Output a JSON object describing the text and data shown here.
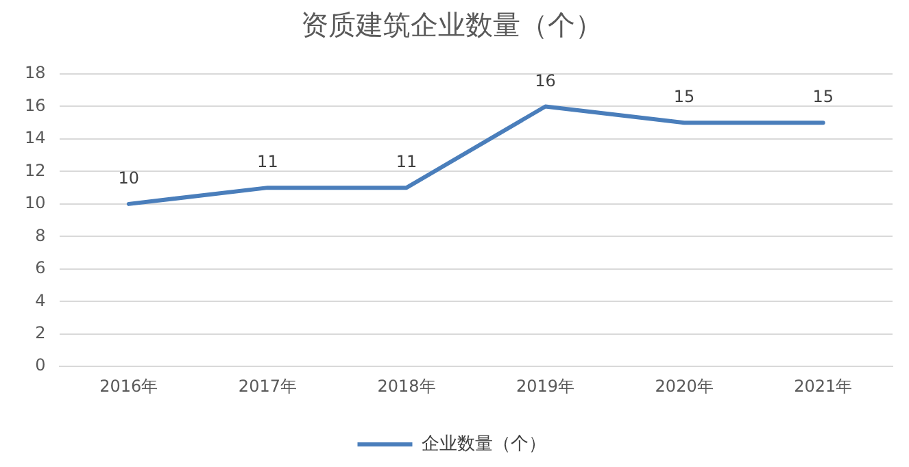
{
  "chart_data": {
    "type": "line",
    "title": "资质建筑企业数量（个）",
    "categories": [
      "2016年",
      "2017年",
      "2018年",
      "2019年",
      "2020年",
      "2021年"
    ],
    "series": [
      {
        "name": "企业数量（个）",
        "color": "#4a7ebb",
        "values": [
          10,
          11,
          11,
          16,
          15,
          15
        ]
      }
    ],
    "ylim": [
      0,
      18
    ],
    "yticks": [
      0,
      2,
      4,
      6,
      8,
      10,
      12,
      14,
      16,
      18
    ],
    "grid": "y",
    "legend": "bottom",
    "marker": "none",
    "line_style": "solid",
    "data_labels": true
  }
}
